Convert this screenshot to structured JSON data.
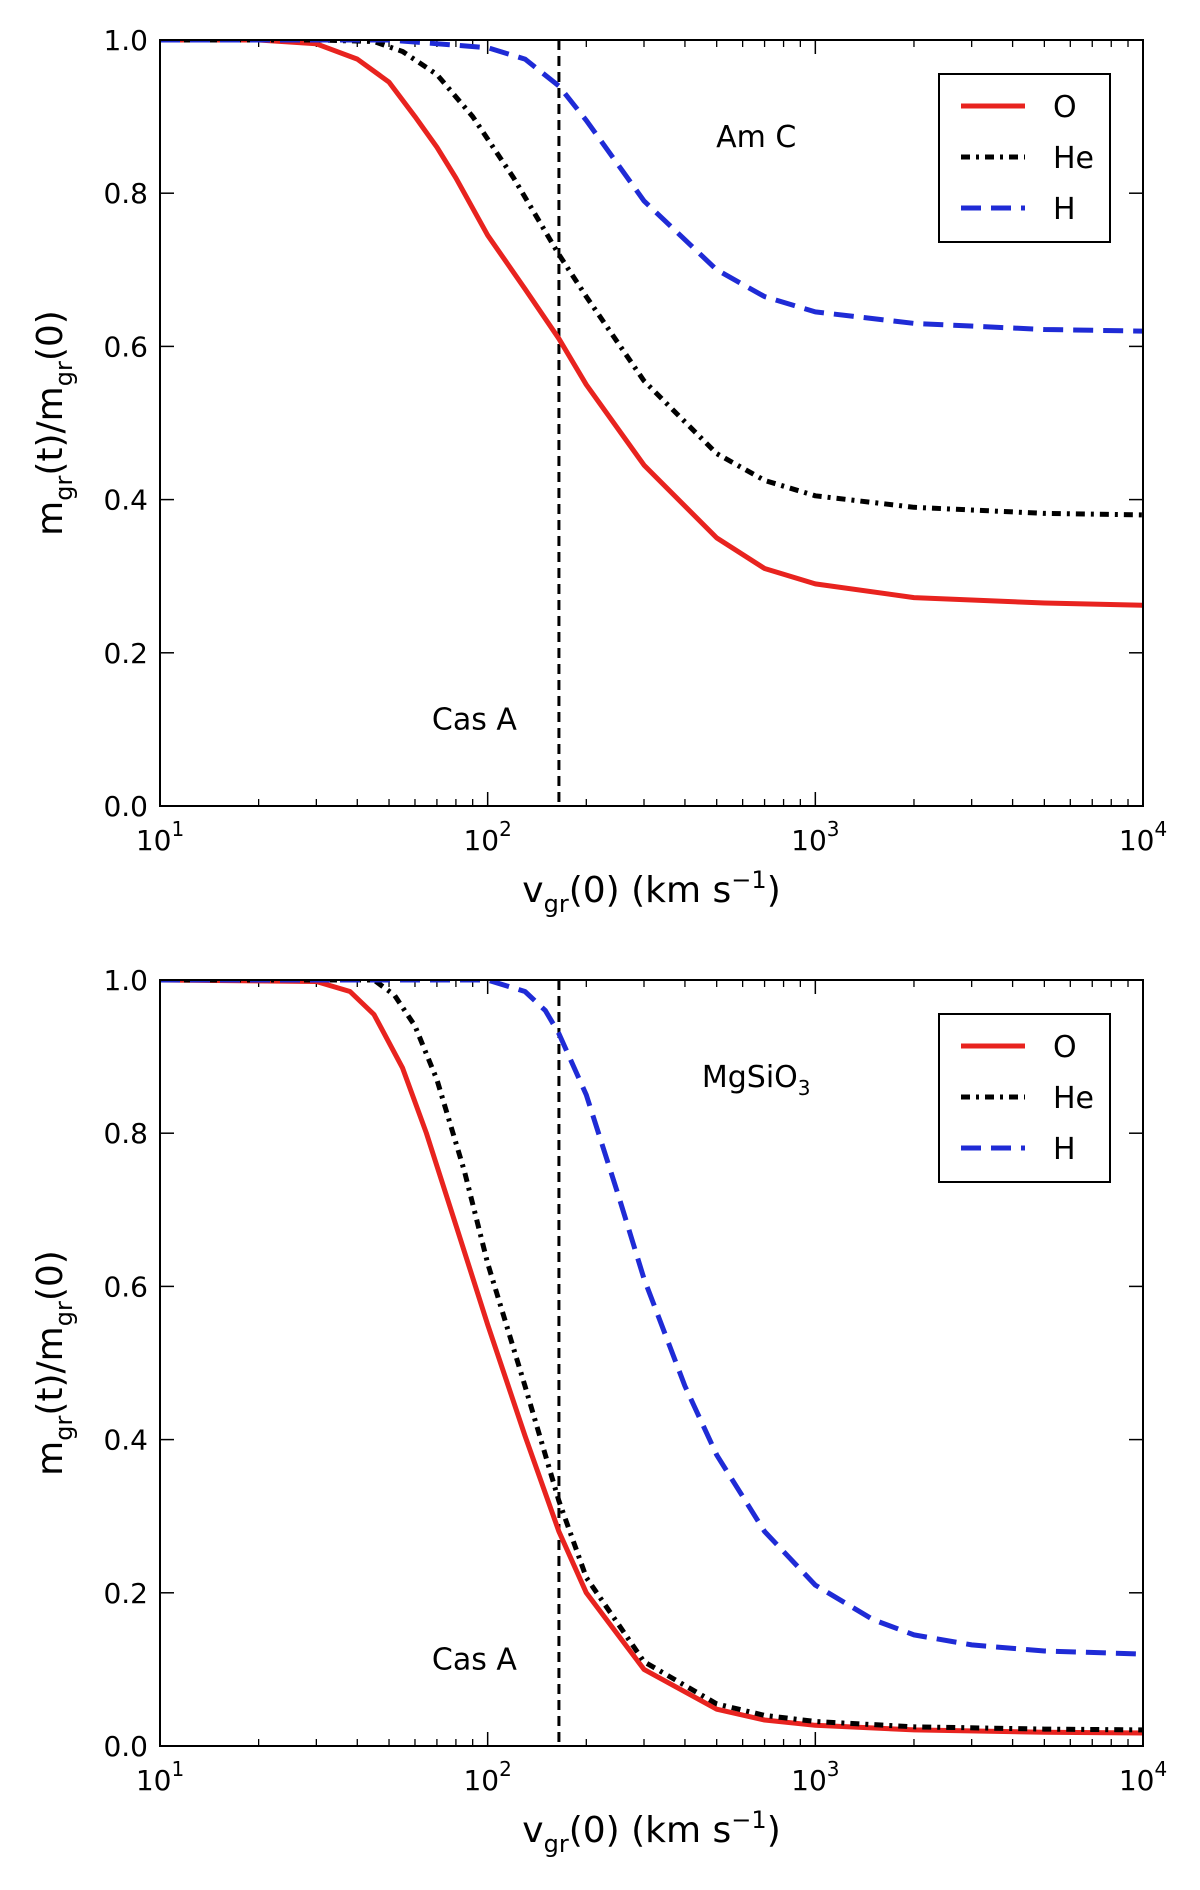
{
  "chart_data": [
    {
      "type": "line",
      "panel": "top",
      "annotation": "Am C",
      "marker_label": "Cas A",
      "marker_x": 165,
      "xscale": "log",
      "xlim": [
        10,
        10000
      ],
      "ylim": [
        0.0,
        1.0
      ],
      "xticks": [
        {
          "value": 10,
          "base": "10",
          "exp": "1"
        },
        {
          "value": 100,
          "base": "10",
          "exp": "2"
        },
        {
          "value": 1000,
          "base": "10",
          "exp": "3"
        },
        {
          "value": 10000,
          "base": "10",
          "exp": "4"
        }
      ],
      "yticks": [
        "0.0",
        "0.2",
        "0.4",
        "0.6",
        "0.8",
        "1.0"
      ],
      "xlabel": {
        "main": "v",
        "sub": "gr",
        "after": "(0) (km s",
        "sup": "−1",
        "close": ")"
      },
      "ylabel": {
        "p1": "m",
        "s1": "gr",
        "p2": "(t)/m",
        "s2": "gr",
        "p3": "(0)"
      },
      "legend_position": "top-right",
      "series": [
        {
          "name": "O",
          "color": "#e8231f",
          "style": "solid",
          "x": [
            10,
            20,
            30,
            40,
            50,
            60,
            70,
            80,
            100,
            130,
            165,
            200,
            300,
            500,
            700,
            1000,
            2000,
            5000,
            10000
          ],
          "y": [
            1.0,
            1.0,
            0.995,
            0.975,
            0.945,
            0.9,
            0.86,
            0.82,
            0.745,
            0.675,
            0.61,
            0.55,
            0.445,
            0.35,
            0.31,
            0.29,
            0.272,
            0.265,
            0.262
          ]
        },
        {
          "name": "He",
          "color": "#000000",
          "style": "dashdot",
          "x": [
            10,
            30,
            45,
            55,
            70,
            90,
            120,
            165,
            200,
            300,
            500,
            700,
            1000,
            2000,
            5000,
            10000
          ],
          "y": [
            1.0,
            1.0,
            0.998,
            0.985,
            0.955,
            0.9,
            0.82,
            0.72,
            0.665,
            0.555,
            0.46,
            0.425,
            0.405,
            0.39,
            0.382,
            0.38
          ]
        },
        {
          "name": "H",
          "color": "#1f2bd6",
          "style": "dashed",
          "x": [
            10,
            50,
            100,
            130,
            165,
            200,
            300,
            500,
            700,
            1000,
            2000,
            5000,
            10000
          ],
          "y": [
            1.0,
            1.0,
            0.99,
            0.975,
            0.94,
            0.895,
            0.79,
            0.7,
            0.665,
            0.645,
            0.63,
            0.622,
            0.62
          ]
        }
      ]
    },
    {
      "type": "line",
      "panel": "bottom",
      "annotation": "MgSiO",
      "annotation_sub": "3",
      "marker_label": "Cas A",
      "marker_x": 165,
      "xscale": "log",
      "xlim": [
        10,
        10000
      ],
      "ylim": [
        0.0,
        1.0
      ],
      "xticks": [
        {
          "value": 10,
          "base": "10",
          "exp": "1"
        },
        {
          "value": 100,
          "base": "10",
          "exp": "2"
        },
        {
          "value": 1000,
          "base": "10",
          "exp": "3"
        },
        {
          "value": 10000,
          "base": "10",
          "exp": "4"
        }
      ],
      "yticks": [
        "0.0",
        "0.2",
        "0.4",
        "0.6",
        "0.8",
        "1.0"
      ],
      "xlabel": {
        "main": "v",
        "sub": "gr",
        "after": "(0) (km s",
        "sup": "−1",
        "close": ")"
      },
      "ylabel": {
        "p1": "m",
        "s1": "gr",
        "p2": "(t)/m",
        "s2": "gr",
        "p3": "(0)"
      },
      "legend_position": "top-right",
      "series": [
        {
          "name": "O",
          "color": "#e8231f",
          "style": "solid",
          "x": [
            10,
            30,
            38,
            45,
            55,
            65,
            80,
            100,
            130,
            165,
            200,
            300,
            500,
            700,
            1000,
            2000,
            5000,
            10000
          ],
          "y": [
            1.0,
            0.998,
            0.985,
            0.955,
            0.885,
            0.8,
            0.68,
            0.55,
            0.405,
            0.28,
            0.2,
            0.1,
            0.048,
            0.034,
            0.027,
            0.021,
            0.018,
            0.017
          ]
        },
        {
          "name": "He",
          "color": "#000000",
          "style": "dashdot",
          "x": [
            10,
            45,
            52,
            60,
            70,
            85,
            100,
            130,
            165,
            200,
            300,
            500,
            700,
            1000,
            2000,
            5000,
            10000
          ],
          "y": [
            1.0,
            1.0,
            0.98,
            0.94,
            0.87,
            0.75,
            0.63,
            0.47,
            0.32,
            0.22,
            0.11,
            0.055,
            0.04,
            0.032,
            0.025,
            0.022,
            0.021
          ]
        },
        {
          "name": "H",
          "color": "#1f2bd6",
          "style": "dashed",
          "x": [
            10,
            100,
            130,
            150,
            165,
            200,
            250,
            300,
            400,
            500,
            700,
            1000,
            1500,
            2000,
            3000,
            5000,
            10000
          ],
          "y": [
            1.0,
            1.0,
            0.985,
            0.96,
            0.93,
            0.85,
            0.72,
            0.61,
            0.47,
            0.38,
            0.28,
            0.21,
            0.165,
            0.145,
            0.132,
            0.124,
            0.12
          ]
        }
      ]
    }
  ]
}
